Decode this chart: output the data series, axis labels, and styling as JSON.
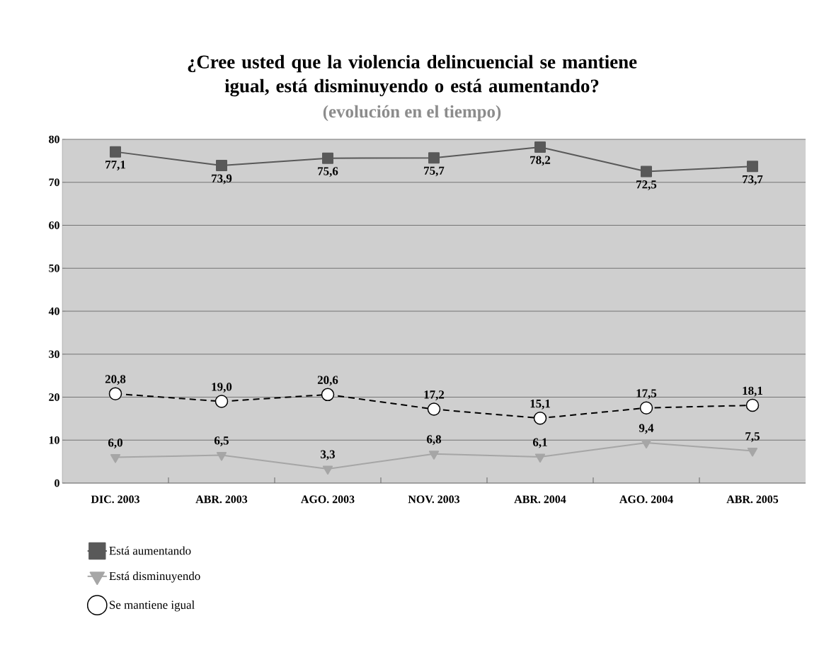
{
  "chart_data": {
    "type": "line",
    "title": "¿Cree usted que la violencia delincuencial se mantiene igual, está disminuyendo o está aumentando?",
    "subtitle": "(evolución en el tiempo)",
    "categories": [
      "DIC. 2003",
      "ABR. 2003",
      "AGO. 2003",
      "NOV. 2003",
      "ABR. 2004",
      "AGO. 2004",
      "ABR. 2005"
    ],
    "series": [
      {
        "name": "Está aumentando",
        "color": "#595959",
        "marker": "square",
        "line_style": "solid",
        "values": [
          77.1,
          73.9,
          75.6,
          75.7,
          78.2,
          72.5,
          73.7
        ],
        "value_labels": [
          "77,1",
          "73,9",
          "75,6",
          "75,7",
          "78,2",
          "72,5",
          "73,7"
        ]
      },
      {
        "name": "Está disminuyendo",
        "color": "#a6a6a6",
        "marker": "triangle",
        "line_style": "solid",
        "values": [
          6.0,
          6.5,
          3.3,
          6.8,
          6.1,
          9.4,
          7.5
        ],
        "value_labels": [
          "6,0",
          "6,5",
          "3,3",
          "6,8",
          "6,1",
          "9,4",
          "7,5"
        ]
      },
      {
        "name": "Se mantiene igual",
        "color": "#000000",
        "marker": "circle",
        "line_style": "dashed",
        "values": [
          20.8,
          19.0,
          20.6,
          17.2,
          15.1,
          17.5,
          18.1
        ],
        "value_labels": [
          "20,8",
          "19,0",
          "20,6",
          "17,2",
          "15,1",
          "17,5",
          "18,1"
        ]
      }
    ],
    "ylim": [
      0,
      80
    ],
    "yticks": [
      0,
      10,
      20,
      30,
      40,
      50,
      60,
      70,
      80
    ],
    "grid": "y",
    "legend": "bottom left"
  }
}
